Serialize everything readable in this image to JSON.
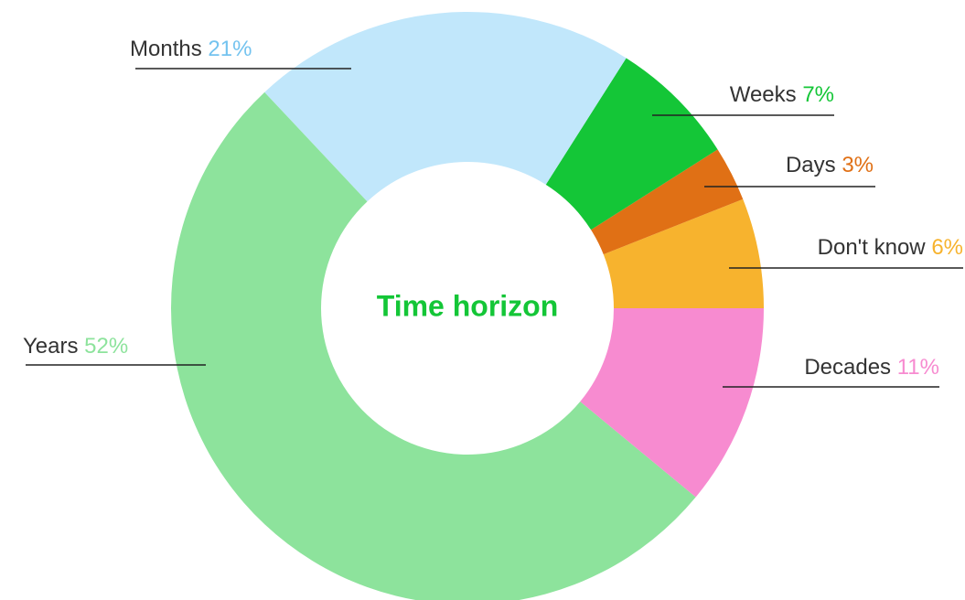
{
  "chart_data": {
    "type": "donut",
    "title": "Time horizon",
    "categories": [
      "Decades",
      "Years",
      "Months",
      "Weeks",
      "Days",
      "Don't know"
    ],
    "values": [
      11,
      52,
      21,
      7,
      3,
      6
    ],
    "value_labels": [
      "11%",
      "52%",
      "21%",
      "7%",
      "3%",
      "6%"
    ],
    "colors": [
      "#f78bd0",
      "#8de39c",
      "#c1e7fb",
      "#14c637",
      "#e07015",
      "#f7b32e"
    ],
    "label_colors": [
      "#f78bd0",
      "#8de39c",
      "#74c3ef",
      "#14c637",
      "#e07015",
      "#f7b32e"
    ],
    "title_color": "#14c637"
  }
}
